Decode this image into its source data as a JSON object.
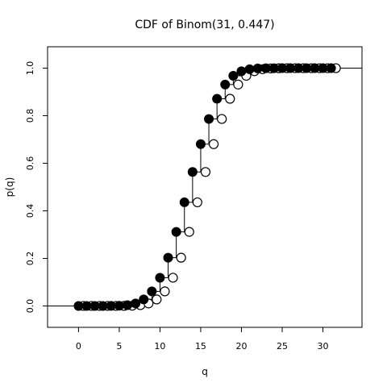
{
  "chart_data": {
    "type": "step",
    "title": "CDF of Binom(31, 0.447)",
    "xlabel": "q",
    "ylabel": "p(q)",
    "xlim": [
      -3.8,
      34.8
    ],
    "ylim": [
      -0.09,
      1.09
    ],
    "x_ticks": [
      0,
      5,
      10,
      15,
      20,
      25,
      30
    ],
    "y_ticks": [
      0.0,
      0.2,
      0.4,
      0.6,
      0.8,
      1.0
    ],
    "x_tick_labels": [
      "0",
      "5",
      "10",
      "15",
      "20",
      "25",
      "30"
    ],
    "y_tick_labels": [
      "0.0",
      "0.2",
      "0.4",
      "0.6",
      "0.8",
      "1.0"
    ],
    "grid": false,
    "series": [
      {
        "marker_filled": "#000000",
        "marker_open": "#000000",
        "x": [
          0,
          1,
          2,
          3,
          4,
          5,
          6,
          7,
          8,
          9,
          10,
          11,
          12,
          13,
          14,
          15,
          16,
          17,
          18,
          19,
          20,
          21,
          22,
          23,
          24,
          25,
          26,
          27,
          28,
          29,
          30,
          31
        ],
        "cdf": [
          0.0,
          0.0,
          0.0,
          0.0,
          0.0002,
          0.0009,
          0.0034,
          0.0105,
          0.0274,
          0.0613,
          0.1187,
          0.2028,
          0.3114,
          0.4358,
          0.5634,
          0.6805,
          0.7863,
          0.8712,
          0.9311,
          0.968,
          0.9871,
          0.9956,
          0.9988,
          0.9997,
          0.9999,
          1.0,
          1.0,
          1.0,
          1.0,
          1.0,
          1.0,
          1.0
        ]
      }
    ]
  }
}
